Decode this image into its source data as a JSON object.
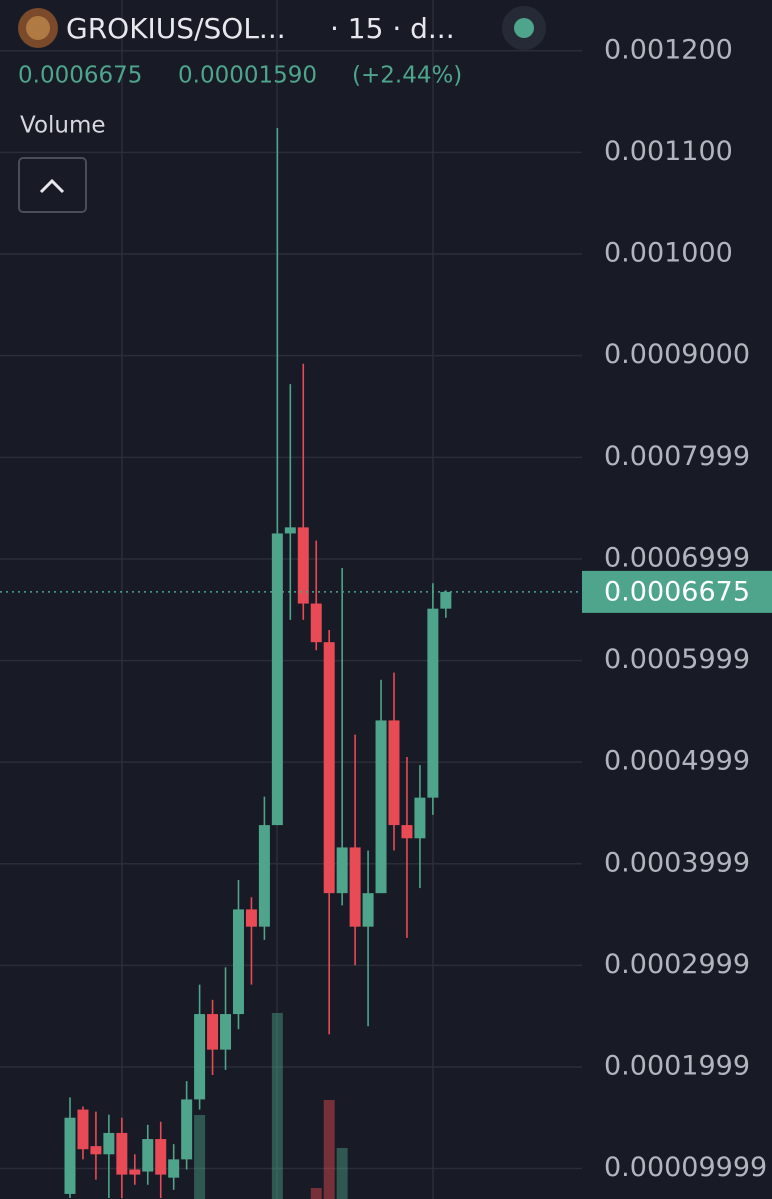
{
  "header": {
    "pair": "GROKIUS/SOL...",
    "interval": "· 15 · d...",
    "change": "0.00001590",
    "change_pct": "(+2.44%)",
    "volume_label": "Volume"
  },
  "chart_data": {
    "type": "candlestick",
    "up_color": "#4ea58b",
    "down_color": "#e84b55",
    "grid": true,
    "ylim": [
      7e-05,
      0.00125
    ],
    "yticks": [
      {
        "value": 0.0012,
        "label": "0.001200"
      },
      {
        "value": 0.0011,
        "label": "0.001100"
      },
      {
        "value": 0.001,
        "label": "0.001000"
      },
      {
        "value": 0.0009,
        "label": "0.0009000"
      },
      {
        "value": 0.0007999,
        "label": "0.0007999"
      },
      {
        "value": 0.0006999,
        "label": "0.0006999"
      },
      {
        "value": 0.0005999,
        "label": "0.0005999"
      },
      {
        "value": 0.0004999,
        "label": "0.0004999"
      },
      {
        "value": 0.0003999,
        "label": "0.0003999"
      },
      {
        "value": 0.0002999,
        "label": "0.0002999"
      },
      {
        "value": 0.0001999,
        "label": "0.0001999"
      },
      {
        "value": 9.999e-05,
        "label": "0.00009999"
      }
    ],
    "last_price": 0.0006675,
    "open": [
      7.5e-05,
      0.000158,
      0.000122,
      0.000114,
      0.000135,
      9.9e-05,
      9.7e-05,
      0.000129,
      9.1e-05,
      0.000109,
      0.000168,
      0.000252,
      0.000217,
      0.000252,
      0.000355,
      0.000338,
      0.000438,
      0.000725,
      0.000731,
      0.000656,
      0.000618,
      0.000371,
      0.000416,
      0.000338,
      0.000371,
      0.000541,
      0.000438,
      0.000425,
      0.000465,
      0.000651
    ],
    "close": [
      0.00015,
      0.000119,
      0.000114,
      0.000135,
      9.4e-05,
      9.4e-05,
      0.000129,
      9.4e-05,
      0.000109,
      0.000168,
      0.000252,
      0.000217,
      0.000252,
      0.000355,
      0.000338,
      0.000438,
      0.000725,
      0.000731,
      0.000656,
      0.000618,
      0.000371,
      0.000416,
      0.000338,
      0.000371,
      0.000541,
      0.000438,
      0.000425,
      0.000465,
      0.000651,
      0.0006675
    ],
    "high": [
      0.00017,
      0.000161,
      0.000156,
      0.000153,
      0.00015,
      0.000114,
      0.000143,
      0.000146,
      0.000124,
      0.000186,
      0.000281,
      0.000266,
      0.000298,
      0.000384,
      0.000367,
      0.000466,
      0.001124,
      0.000872,
      0.000892,
      0.000718,
      0.00063,
      0.000691,
      0.000527,
      0.000413,
      0.000581,
      0.000588,
      0.000505,
      0.000497,
      0.000676,
      0.000669
    ],
    "low": [
      7.1e-05,
      0.000109,
      8.9e-05,
      7.1e-05,
      7.1e-05,
      8.4e-05,
      8.4e-05,
      7.1e-05,
      7.9e-05,
      9.9e-05,
      0.000158,
      0.000192,
      0.000197,
      0.000237,
      0.000281,
      0.000325,
      0.000438,
      0.00064,
      0.00064,
      0.00061,
      0.000232,
      0.000359,
      0.0003,
      0.00024,
      0.000371,
      0.000413,
      0.000327,
      0.000376,
      0.000448,
      0.000642
    ],
    "volume": [
      null,
      null,
      null,
      null,
      null,
      null,
      null,
      null,
      null,
      null,
      84,
      null,
      null,
      null,
      null,
      null,
      186,
      null,
      null,
      11,
      99,
      51,
      null,
      null,
      null,
      null,
      null,
      null,
      null,
      null
    ],
    "volume_lim": [
      0,
      400
    ]
  }
}
